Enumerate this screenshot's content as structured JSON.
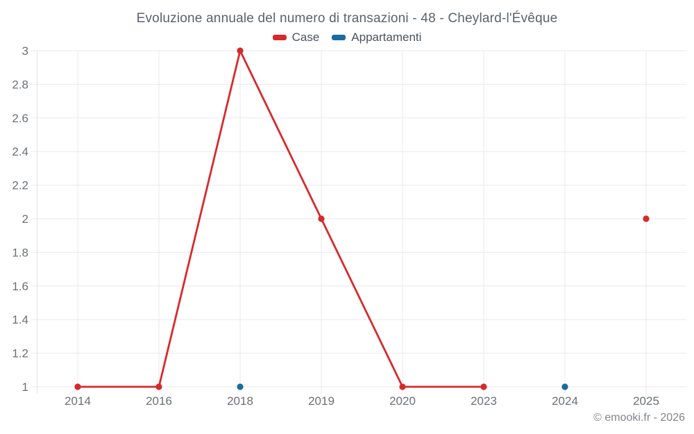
{
  "footer": {
    "copyright": "© emooki.fr - 2026"
  },
  "chart_data": {
    "type": "line",
    "title": "Evoluzione annuale del numero di transazioni - 48 - Cheylard-l'Évêque",
    "categories": [
      "2014",
      "2016",
      "2018",
      "2019",
      "2020",
      "2023",
      "2024",
      "2025"
    ],
    "series": [
      {
        "name": "Case",
        "color": "#d7292c",
        "values": [
          1,
          1,
          3,
          2,
          1,
          1,
          null,
          2
        ]
      },
      {
        "name": "Appartamenti",
        "color": "#1a6ca0",
        "values": [
          null,
          null,
          1,
          null,
          null,
          null,
          1,
          null
        ]
      }
    ],
    "ylim": [
      1,
      3
    ],
    "ytick_step": 0.2,
    "yticks": [
      "1",
      "1.2",
      "1.4",
      "1.6",
      "1.8",
      "2",
      "2.2",
      "2.4",
      "2.6",
      "2.8",
      "3"
    ],
    "grid": true,
    "legend_position": "top",
    "colors": {
      "grid_line": "#e9eaeb",
      "axis_border": "#e3e4e5",
      "tick_label": "#6a7075",
      "title": "#59626b"
    }
  }
}
